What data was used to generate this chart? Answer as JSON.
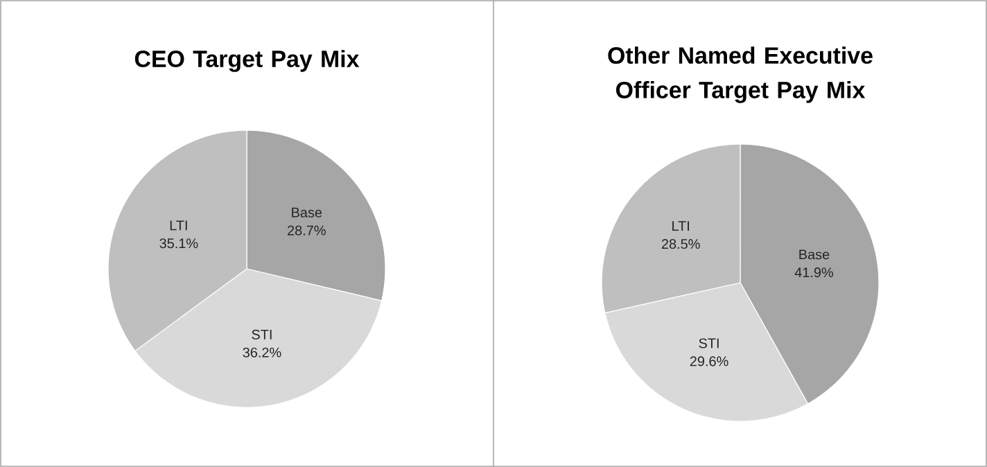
{
  "chart_data": [
    {
      "type": "pie",
      "title": "CEO Target Pay Mix",
      "categories": [
        "Base",
        "STI",
        "LTI"
      ],
      "values": [
        28.7,
        36.2,
        35.1
      ],
      "colors": [
        "#a6a6a6",
        "#d9d9d9",
        "#bfbfbf"
      ],
      "value_labels": [
        "28.7%",
        "36.2%",
        "35.1%"
      ]
    },
    {
      "type": "pie",
      "title": "Other Named Executive Officer Target Pay Mix",
      "categories": [
        "Base",
        "STI",
        "LTI"
      ],
      "values": [
        41.9,
        29.6,
        28.5
      ],
      "colors": [
        "#a6a6a6",
        "#d9d9d9",
        "#bfbfbf"
      ],
      "value_labels": [
        "41.9%",
        "29.6%",
        "28.5%"
      ]
    }
  ]
}
